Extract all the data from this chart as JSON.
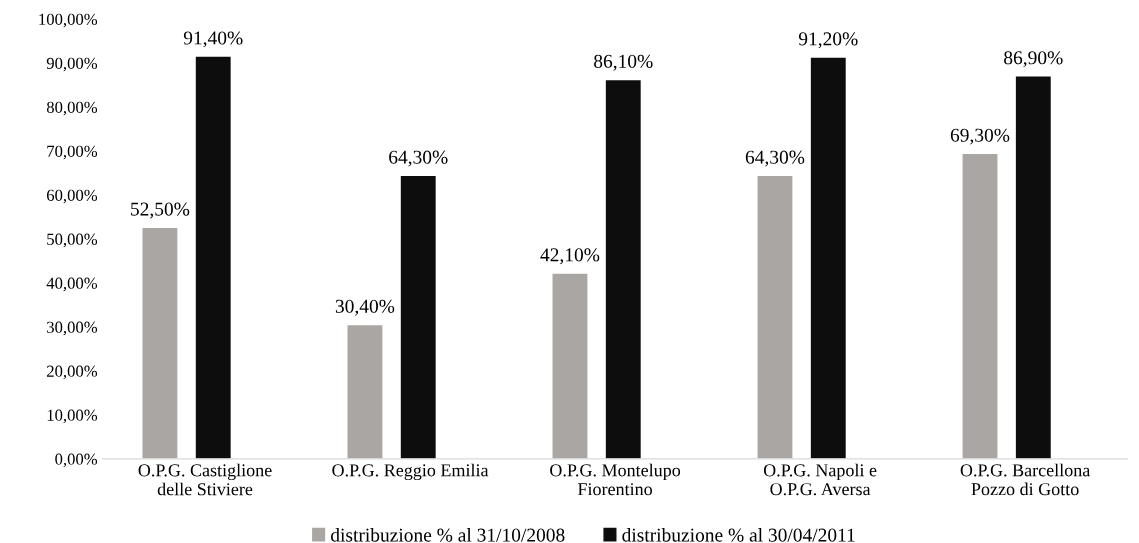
{
  "chart_data": {
    "type": "bar",
    "categories": [
      "O.P.G. Castiglione\ndelle Stiviere",
      "O.P.G. Reggio Emilia",
      "O.P.G. Montelupo\nFiorentino",
      "O.P.G. Napoli e\nO.P.G. Aversa",
      "O.P.G. Barcellona\nPozzo di Gotto"
    ],
    "series": [
      {
        "name": "distribuzione % al 31/10/2008",
        "color": "#aaa6a4",
        "values": [
          52.5,
          30.4,
          42.1,
          64.3,
          69.3
        ],
        "value_labels": [
          "52,50%",
          "30,40%",
          "42,10%",
          "64,30%",
          "69,30%"
        ]
      },
      {
        "name": "distribuzione % al 30/04/2011",
        "color": "#0d0d0d",
        "values": [
          91.4,
          64.3,
          86.1,
          91.2,
          86.9
        ],
        "value_labels": [
          "91,40%",
          "64,30%",
          "86,10%",
          "91,20%",
          "86,90%"
        ]
      }
    ],
    "ylim": [
      0,
      100
    ],
    "yticks": [
      {
        "value": 0,
        "label": "0,00%"
      },
      {
        "value": 10,
        "label": "10,00%"
      },
      {
        "value": 20,
        "label": "20,00%"
      },
      {
        "value": 30,
        "label": "30,00%"
      },
      {
        "value": 40,
        "label": "40,00%"
      },
      {
        "value": 50,
        "label": "50,00%"
      },
      {
        "value": 60,
        "label": "60,00%"
      },
      {
        "value": 70,
        "label": "70,00%"
      },
      {
        "value": 80,
        "label": "80,00%"
      },
      {
        "value": 90,
        "label": "90,00%"
      },
      {
        "value": 100,
        "label": "100,00%"
      }
    ],
    "grid": false,
    "legend": "bottom"
  }
}
